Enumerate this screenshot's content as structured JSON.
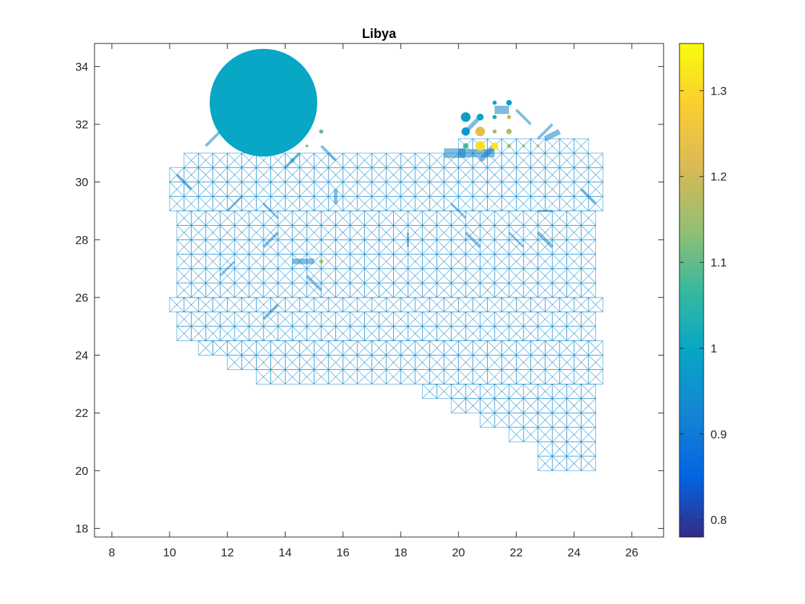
{
  "chart_data": {
    "type": "scatter",
    "title": "Libya",
    "xlabel": "",
    "ylabel": "",
    "xlim": [
      7.4,
      27.1
    ],
    "ylim": [
      17.7,
      34.8
    ],
    "xticks": [
      8,
      10,
      12,
      14,
      16,
      18,
      20,
      22,
      24,
      26
    ],
    "yticks": [
      18,
      20,
      22,
      24,
      26,
      28,
      30,
      32,
      34
    ],
    "grid": false,
    "colorbar": {
      "limits": [
        0.78,
        1.355
      ],
      "ticks": [
        0.8,
        0.9,
        1.0,
        1.1,
        1.2,
        1.3
      ],
      "tick_labels": [
        "0.8",
        "0.9",
        "1",
        "1.1",
        "1.2",
        "1.3"
      ],
      "colormap": "parula"
    },
    "mesh": {
      "spacing": 0.5,
      "edge_color": "#1f8fd0",
      "rows": [
        {
          "y": 31.5,
          "x0": 20.0,
          "x1": 24.5
        },
        {
          "y": 31.0,
          "x0": 10.5,
          "x1": 24.75
        },
        {
          "y": 30.5,
          "x0": 10.0,
          "x1": 24.75
        },
        {
          "y": 30.0,
          "x0": 10.0,
          "x1": 24.75
        },
        {
          "y": 29.5,
          "x0": 10.0,
          "x1": 24.75
        },
        {
          "y": 29.0,
          "x0": 10.25,
          "x1": 24.75
        },
        {
          "y": 28.5,
          "x0": 10.25,
          "x1": 24.75
        },
        {
          "y": 28.0,
          "x0": 10.25,
          "x1": 24.75
        },
        {
          "y": 27.5,
          "x0": 10.25,
          "x1": 24.75
        },
        {
          "y": 27.0,
          "x0": 10.25,
          "x1": 24.75
        },
        {
          "y": 26.5,
          "x0": 10.25,
          "x1": 24.75
        },
        {
          "y": 26.0,
          "x0": 10.0,
          "x1": 24.75
        },
        {
          "y": 25.5,
          "x0": 10.25,
          "x1": 24.75
        },
        {
          "y": 25.0,
          "x0": 10.25,
          "x1": 24.75
        },
        {
          "y": 24.5,
          "x0": 11.0,
          "x1": 24.75
        },
        {
          "y": 24.0,
          "x0": 12.0,
          "x1": 24.75
        },
        {
          "y": 23.5,
          "x0": 13.0,
          "x1": 24.75
        },
        {
          "y": 23.0,
          "x0": 18.75,
          "x1": 24.75
        },
        {
          "y": 22.5,
          "x0": 19.75,
          "x1": 24.75
        },
        {
          "y": 22.0,
          "x0": 20.75,
          "x1": 24.75
        },
        {
          "y": 21.5,
          "x0": 21.75,
          "x1": 24.75
        },
        {
          "y": 21.0,
          "x0": 22.75,
          "x1": 24.75
        },
        {
          "y": 20.5,
          "x0": 22.75,
          "x1": 24.75
        }
      ]
    },
    "edges": [
      {
        "x1": 10.25,
        "y1": 30.25,
        "x2": 10.75,
        "y2": 29.75,
        "w": 4
      },
      {
        "x1": 11.25,
        "y1": 31.25,
        "x2": 11.75,
        "y2": 31.75,
        "w": 4
      },
      {
        "x1": 12.5,
        "y1": 29.5,
        "x2": 12.0,
        "y2": 29.0,
        "w": 3
      },
      {
        "x1": 13.25,
        "y1": 29.25,
        "x2": 13.75,
        "y2": 28.75,
        "w": 3
      },
      {
        "x1": 14.0,
        "y1": 30.5,
        "x2": 14.5,
        "y2": 31.0,
        "w": 4
      },
      {
        "x1": 15.25,
        "y1": 31.25,
        "x2": 15.75,
        "y2": 30.75,
        "w": 4
      },
      {
        "x1": 15.75,
        "y1": 29.75,
        "x2": 15.75,
        "y2": 29.25,
        "w": 5
      },
      {
        "x1": 13.25,
        "y1": 27.75,
        "x2": 13.75,
        "y2": 28.25,
        "w": 4
      },
      {
        "x1": 14.25,
        "y1": 27.25,
        "x2": 15.0,
        "y2": 27.25,
        "w": 8
      },
      {
        "x1": 14.75,
        "y1": 26.75,
        "x2": 15.25,
        "y2": 26.25,
        "w": 4
      },
      {
        "x1": 11.75,
        "y1": 26.75,
        "x2": 12.25,
        "y2": 27.25,
        "w": 3
      },
      {
        "x1": 13.25,
        "y1": 25.25,
        "x2": 13.75,
        "y2": 25.75,
        "w": 4
      },
      {
        "x1": 18.25,
        "y1": 28.25,
        "x2": 18.25,
        "y2": 27.75,
        "w": 3
      },
      {
        "x1": 19.75,
        "y1": 29.25,
        "x2": 20.25,
        "y2": 28.75,
        "w": 3
      },
      {
        "x1": 20.25,
        "y1": 28.25,
        "x2": 20.75,
        "y2": 27.75,
        "w": 4
      },
      {
        "x1": 21.75,
        "y1": 28.25,
        "x2": 22.25,
        "y2": 27.75,
        "w": 3
      },
      {
        "x1": 22.75,
        "y1": 28.25,
        "x2": 23.25,
        "y2": 27.75,
        "w": 5
      },
      {
        "x1": 22.75,
        "y1": 29.0,
        "x2": 23.25,
        "y2": 29.0,
        "w": 3
      },
      {
        "x1": 24.25,
        "y1": 29.75,
        "x2": 24.75,
        "y2": 29.25,
        "w": 4
      },
      {
        "x1": 20.0,
        "y1": 31.0,
        "x2": 21.25,
        "y2": 31.0,
        "w": 12
      },
      {
        "x1": 19.5,
        "y1": 31.0,
        "x2": 20.25,
        "y2": 31.0,
        "w": 14
      },
      {
        "x1": 20.75,
        "y1": 30.75,
        "x2": 21.25,
        "y2": 31.25,
        "w": 8
      },
      {
        "x1": 20.25,
        "y1": 31.75,
        "x2": 20.75,
        "y2": 32.25,
        "w": 6
      },
      {
        "x1": 21.25,
        "y1": 32.5,
        "x2": 21.75,
        "y2": 32.5,
        "w": 12
      },
      {
        "x1": 22.0,
        "y1": 32.5,
        "x2": 22.5,
        "y2": 32.0,
        "w": 4
      },
      {
        "x1": 23.0,
        "y1": 31.5,
        "x2": 23.5,
        "y2": 31.75,
        "w": 8
      },
      {
        "x1": 22.75,
        "y1": 31.5,
        "x2": 23.25,
        "y2": 32.0,
        "w": 4
      }
    ],
    "points": [
      {
        "x": 13.25,
        "y": 32.75,
        "r": 78,
        "value": 1.0
      },
      {
        "x": 14.25,
        "y": 30.75,
        "r": 3,
        "value": 1.05
      },
      {
        "x": 15.25,
        "y": 27.25,
        "r": 3,
        "value": 1.15
      },
      {
        "x": 15.25,
        "y": 31.75,
        "r": 3,
        "value": 1.1
      },
      {
        "x": 14.75,
        "y": 31.25,
        "r": 2,
        "value": 1.12
      },
      {
        "x": 21.25,
        "y": 32.75,
        "r": 3,
        "value": 1.0
      },
      {
        "x": 21.75,
        "y": 32.75,
        "r": 4,
        "value": 0.98
      },
      {
        "x": 21.75,
        "y": 32.25,
        "r": 3,
        "value": 1.2
      },
      {
        "x": 20.25,
        "y": 32.25,
        "r": 7,
        "value": 0.98
      },
      {
        "x": 20.75,
        "y": 32.25,
        "r": 5,
        "value": 1.0
      },
      {
        "x": 21.25,
        "y": 32.25,
        "r": 3,
        "value": 1.02
      },
      {
        "x": 20.25,
        "y": 31.75,
        "r": 6,
        "value": 0.97
      },
      {
        "x": 20.75,
        "y": 31.75,
        "r": 7,
        "value": 1.23
      },
      {
        "x": 21.25,
        "y": 31.75,
        "r": 3,
        "value": 1.15
      },
      {
        "x": 21.75,
        "y": 31.75,
        "r": 4,
        "value": 1.17
      },
      {
        "x": 20.25,
        "y": 31.25,
        "r": 4,
        "value": 1.08
      },
      {
        "x": 20.75,
        "y": 31.25,
        "r": 7,
        "value": 1.31
      },
      {
        "x": 21.25,
        "y": 31.25,
        "r": 5,
        "value": 1.32
      },
      {
        "x": 21.75,
        "y": 31.25,
        "r": 3,
        "value": 1.15
      },
      {
        "x": 22.25,
        "y": 31.25,
        "r": 2,
        "value": 1.12
      },
      {
        "x": 22.75,
        "y": 31.25,
        "r": 2,
        "value": 1.14
      }
    ]
  }
}
